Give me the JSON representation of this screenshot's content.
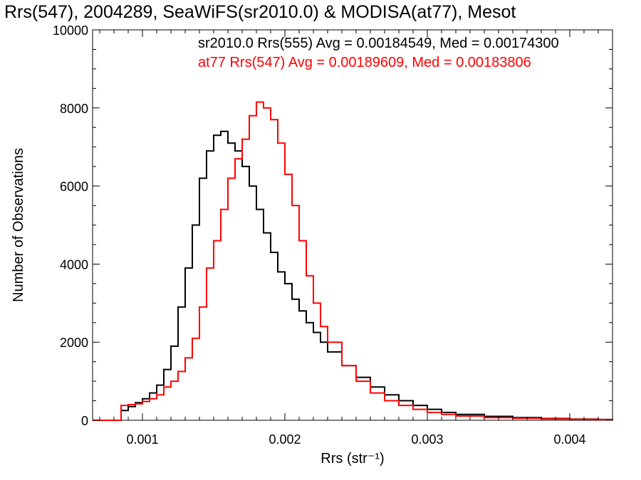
{
  "chart_data": {
    "type": "line",
    "title": "Rrs(547), 2004289, SeaWiFS(sr2010.0) & MODISA(at77), Mesot",
    "xlabel": "Rrs (str⁻¹)",
    "ylabel": "Number of Observations",
    "xlim": [
      0.00065,
      0.0043
    ],
    "ylim": [
      0,
      10000
    ],
    "x_ticks": [
      {
        "value": 0.001,
        "label": "0.001"
      },
      {
        "value": 0.002,
        "label": "0.002"
      },
      {
        "value": 0.003,
        "label": "0.003"
      },
      {
        "value": 0.004,
        "label": "0.004"
      }
    ],
    "y_ticks": [
      {
        "value": 0,
        "label": "0"
      },
      {
        "value": 2000,
        "label": "2000"
      },
      {
        "value": 4000,
        "label": "4000"
      },
      {
        "value": 6000,
        "label": "6000"
      },
      {
        "value": 8000,
        "label": "8000"
      },
      {
        "value": 10000,
        "label": "10000"
      }
    ],
    "grid": false,
    "legend_position": "top-right",
    "series": [
      {
        "legend": "sr2010.0 Rrs(555) Avg = 0.00184549, Med = 0.00174300",
        "color": "#000000",
        "x": [
          0.00065,
          0.0008,
          0.00085,
          0.0009,
          0.00095,
          0.001,
          0.00105,
          0.0011,
          0.00115,
          0.0012,
          0.00125,
          0.0013,
          0.00135,
          0.0014,
          0.00145,
          0.0015,
          0.00155,
          0.0016,
          0.00165,
          0.0017,
          0.00175,
          0.0018,
          0.00185,
          0.0019,
          0.00195,
          0.002,
          0.00205,
          0.0021,
          0.00215,
          0.0022,
          0.00225,
          0.0023,
          0.0024,
          0.0025,
          0.0026,
          0.0027,
          0.0028,
          0.0029,
          0.003,
          0.0031,
          0.0032,
          0.0034,
          0.0036,
          0.0038,
          0.004,
          0.0042,
          0.0043
        ],
        "y": [
          0,
          0,
          250,
          350,
          450,
          550,
          700,
          900,
          1300,
          1900,
          2900,
          3900,
          5000,
          6200,
          6900,
          7300,
          7400,
          7100,
          6900,
          6500,
          6000,
          5400,
          4800,
          4300,
          3800,
          3500,
          3100,
          2800,
          2500,
          2250,
          2000,
          1750,
          1400,
          1100,
          850,
          650,
          500,
          380,
          280,
          200,
          150,
          100,
          70,
          45,
          30,
          20,
          15
        ]
      },
      {
        "legend": "at77 Rrs(547) Avg = 0.00189609, Med = 0.00183806",
        "color": "#ff0000",
        "x": [
          0.00065,
          0.0008,
          0.00085,
          0.0009,
          0.00095,
          0.001,
          0.00105,
          0.0011,
          0.00115,
          0.0012,
          0.00125,
          0.0013,
          0.00135,
          0.0014,
          0.00145,
          0.0015,
          0.00155,
          0.0016,
          0.00165,
          0.0017,
          0.00175,
          0.0018,
          0.00185,
          0.0019,
          0.00195,
          0.002,
          0.00205,
          0.0021,
          0.00215,
          0.0022,
          0.00225,
          0.0023,
          0.0024,
          0.0025,
          0.0026,
          0.0027,
          0.0028,
          0.0029,
          0.003,
          0.0031,
          0.0032,
          0.0034,
          0.0036,
          0.0038,
          0.004,
          0.0042,
          0.0043
        ],
        "y": [
          0,
          0,
          380,
          400,
          420,
          480,
          550,
          650,
          850,
          1000,
          1250,
          1600,
          2100,
          2900,
          3900,
          4600,
          5400,
          6200,
          6700,
          7200,
          7800,
          8150,
          8000,
          7700,
          7100,
          6300,
          5500,
          4600,
          3700,
          3000,
          2400,
          2000,
          1400,
          1000,
          700,
          500,
          380,
          280,
          200,
          150,
          110,
          70,
          50,
          35,
          25,
          15,
          10
        ]
      }
    ]
  }
}
